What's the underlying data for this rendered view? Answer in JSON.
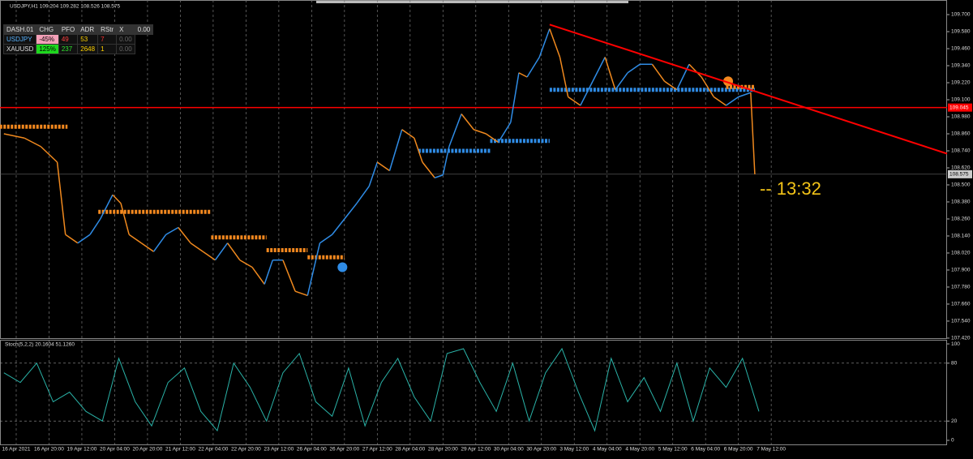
{
  "chart_data": {
    "type": "line",
    "header": "USDJPY,H1  109.204 109.282 108.526 108.575",
    "xlim": [
      -7.9,
      453.7
    ],
    "xticks": [
      {
        "value": 0,
        "label": "16 Apr 2021"
      },
      {
        "value": 16,
        "label": "16 Apr 20:00"
      },
      {
        "value": 32,
        "label": "19 Apr 12:00"
      },
      {
        "value": 48,
        "label": "20 Apr 04:00"
      },
      {
        "value": 64,
        "label": "20 Apr 20:00"
      },
      {
        "value": 80,
        "label": "21 Apr 12:00"
      },
      {
        "value": 96,
        "label": "22 Apr 04:00"
      },
      {
        "value": 112,
        "label": "22 Apr 20:00"
      },
      {
        "value": 128,
        "label": "23 Apr 12:00"
      },
      {
        "value": 144,
        "label": "26 Apr 04:00"
      },
      {
        "value": 160,
        "label": "26 Apr 20:00"
      },
      {
        "value": 176,
        "label": "27 Apr 12:00"
      },
      {
        "value": 192,
        "label": "28 Apr 04:00"
      },
      {
        "value": 208,
        "label": "28 Apr 20:00"
      },
      {
        "value": 224,
        "label": "29 Apr 12:00"
      },
      {
        "value": 240,
        "label": "30 Apr 04:00"
      },
      {
        "value": 256,
        "label": "30 Apr 20:00"
      },
      {
        "value": 272,
        "label": "3 May 12:00"
      },
      {
        "value": 288,
        "label": "4 May 04:00"
      },
      {
        "value": 304,
        "label": "4 May 20:00"
      },
      {
        "value": 320,
        "label": "5 May 12:00"
      },
      {
        "value": 336,
        "label": "6 May 04:00"
      },
      {
        "value": 352,
        "label": "6 May 20:00"
      },
      {
        "value": 368,
        "label": "7 May 12:00"
      }
    ],
    "ylim": [
      107.414,
      109.803
    ],
    "yticks": [
      {
        "value": 109.7,
        "label": "109.700"
      },
      {
        "value": 109.58,
        "label": "109.580"
      },
      {
        "value": 109.46,
        "label": "109.460"
      },
      {
        "value": 109.34,
        "label": "109.340"
      },
      {
        "value": 109.22,
        "label": "109.220"
      },
      {
        "value": 109.1,
        "label": "109.100"
      },
      {
        "value": 108.98,
        "label": "108.980"
      },
      {
        "value": 108.86,
        "label": "108.860"
      },
      {
        "value": 108.74,
        "label": "108.740"
      },
      {
        "value": 108.62,
        "label": "108.620"
      },
      {
        "value": 108.5,
        "label": "108.500"
      },
      {
        "value": 108.38,
        "label": "108.380"
      },
      {
        "value": 108.26,
        "label": "108.260"
      },
      {
        "value": 108.14,
        "label": "108.140"
      },
      {
        "value": 108.02,
        "label": "108.020"
      },
      {
        "value": 107.9,
        "label": "107.900"
      },
      {
        "value": 107.78,
        "label": "107.780"
      },
      {
        "value": 107.66,
        "label": "107.660"
      },
      {
        "value": 107.54,
        "label": "107.540"
      },
      {
        "value": 107.42,
        "label": "107.420"
      }
    ],
    "grid": true,
    "series": [
      {
        "name": "USDJPY",
        "color": "#2f8ce6",
        "down_color": "#f0891e",
        "x": [
          -6,
          4,
          12,
          20,
          24,
          30,
          36,
          41,
          47,
          51,
          55,
          61,
          67,
          73,
          79,
          85,
          91,
          97,
          103,
          109,
          115,
          121,
          125,
          130,
          136,
          142,
          148,
          154,
          160,
          166,
          172,
          176,
          182,
          188,
          194,
          198,
          204,
          208,
          211,
          217,
          223,
          229,
          235,
          241,
          245,
          249,
          255,
          260,
          265,
          269,
          275,
          281,
          287,
          292,
          298,
          304,
          310,
          316,
          322,
          328,
          334,
          340,
          346,
          352,
          358,
          360
        ],
        "values": [
          108.86,
          108.83,
          108.77,
          108.66,
          108.15,
          108.09,
          108.15,
          108.26,
          108.43,
          108.37,
          108.15,
          108.09,
          108.03,
          108.15,
          108.2,
          108.09,
          108.03,
          107.97,
          108.09,
          107.97,
          107.92,
          107.8,
          107.97,
          107.97,
          107.75,
          107.72,
          108.09,
          108.15,
          108.26,
          108.37,
          108.49,
          108.66,
          108.6,
          108.89,
          108.83,
          108.66,
          108.55,
          108.57,
          108.77,
          109.0,
          108.89,
          108.86,
          108.8,
          108.94,
          109.29,
          109.26,
          109.4,
          109.6,
          109.4,
          109.12,
          109.06,
          109.23,
          109.4,
          109.17,
          109.29,
          109.35,
          109.35,
          109.23,
          109.17,
          109.35,
          109.26,
          109.12,
          109.06,
          109.12,
          109.15,
          108.575
        ]
      }
    ],
    "levels": [
      {
        "color": "#f5891f",
        "x": [
          -8,
          25
        ],
        "value": 108.91
      },
      {
        "color": "#f5891f",
        "x": [
          40,
          95
        ],
        "value": 108.31
      },
      {
        "color": "#f5891f",
        "x": [
          95,
          122
        ],
        "value": 108.13
      },
      {
        "color": "#f5891f",
        "x": [
          122,
          142
        ],
        "value": 108.04
      },
      {
        "color": "#f5891f",
        "x": [
          142,
          160
        ],
        "value": 107.99
      },
      {
        "color": "#2f8ce6",
        "x": [
          196,
          231
        ],
        "value": 108.74
      },
      {
        "color": "#2f8ce6",
        "x": [
          231,
          260
        ],
        "value": 108.81
      },
      {
        "color": "#2f8ce6",
        "x": [
          260,
          360
        ],
        "value": 109.17
      },
      {
        "color": "#f5891f",
        "x": [
          346,
          360
        ],
        "value": 109.19
      }
    ],
    "markers": [
      {
        "color": "#2f8ce6",
        "x": 159,
        "value": 107.92
      },
      {
        "color": "#f5891f",
        "x": 347,
        "value": 109.23
      }
    ],
    "trendline": {
      "color": "#ff0000",
      "x": [
        260,
        453.7
      ],
      "values": [
        109.63,
        108.72
      ]
    },
    "hline": {
      "color": "#ff0000",
      "value": 109.045,
      "label": "109.045"
    },
    "price_label": {
      "value": 108.575,
      "label": "108.575"
    },
    "countdown": "-- 13:32",
    "stoch": {
      "label": "Stoch(5,2,2) 20.1604 51.1260",
      "color": "#2ab3a8",
      "ylim": [
        -4.2,
        103.4
      ],
      "yticks": [
        100,
        80,
        20,
        0
      ],
      "levels": [
        80,
        20
      ],
      "x": [
        -6,
        2,
        10,
        18,
        26,
        34,
        42,
        50,
        58,
        66,
        74,
        82,
        90,
        98,
        106,
        114,
        122,
        130,
        138,
        146,
        154,
        162,
        170,
        178,
        186,
        194,
        202,
        210,
        218,
        226,
        234,
        242,
        250,
        258,
        266,
        274,
        282,
        290,
        298,
        306,
        314,
        322,
        330,
        338,
        346,
        354,
        362
      ],
      "values": [
        70,
        60,
        80,
        40,
        50,
        30,
        20,
        85,
        40,
        15,
        60,
        75,
        30,
        10,
        80,
        55,
        20,
        70,
        90,
        40,
        25,
        75,
        15,
        60,
        85,
        45,
        20,
        90,
        95,
        60,
        30,
        80,
        20,
        70,
        95,
        50,
        10,
        85,
        40,
        65,
        30,
        80,
        20,
        75,
        55,
        85,
        30
      ]
    },
    "dashboard": {
      "header": [
        "DASH.01",
        "CHG",
        "PFO",
        "ADR",
        "RStr",
        "X",
        "0.00"
      ],
      "rows": [
        [
          "USDJPY",
          "-45%",
          "49",
          "53",
          "7",
          "0.00"
        ],
        [
          "XAUUSD",
          "125%",
          "237",
          "2648",
          "1",
          "0.00"
        ]
      ]
    }
  }
}
